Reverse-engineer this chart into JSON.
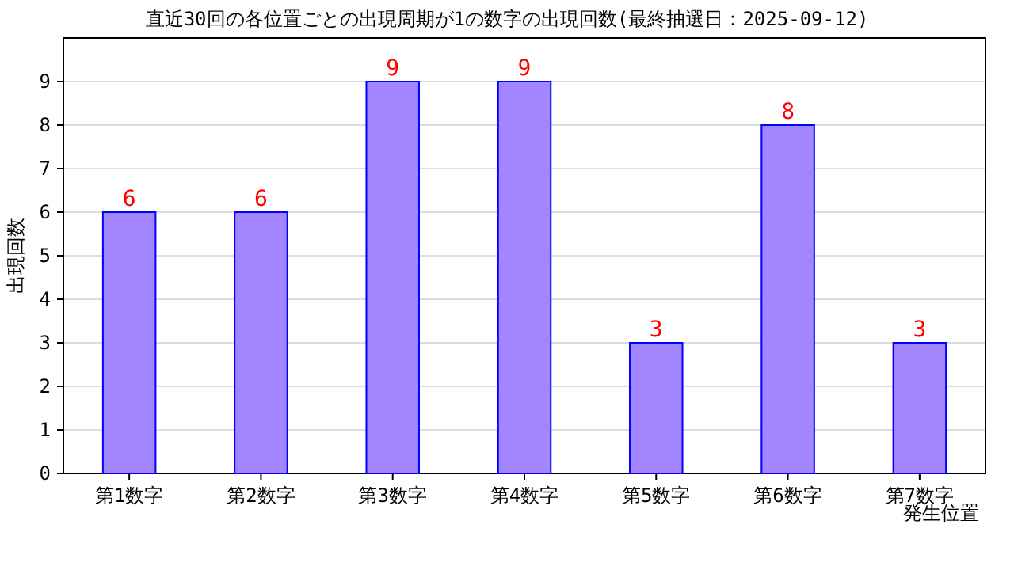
{
  "chart_data": {
    "type": "bar",
    "title": "直近30回の各位置ごとの出現周期が1の数字の出現回数(最終抽選日：2025-09-12)",
    "xlabel": "発生位置",
    "ylabel": "出現回数",
    "categories": [
      "第1数字",
      "第2数字",
      "第3数字",
      "第4数字",
      "第5数字",
      "第6数字",
      "第7数字"
    ],
    "values": [
      6,
      6,
      9,
      9,
      3,
      8,
      3
    ],
    "color": "#a385ff",
    "data_labels": true,
    "ylim": [
      0,
      10
    ],
    "yticks": [
      0,
      1,
      2,
      3,
      4,
      5,
      6,
      7,
      8,
      9
    ],
    "grid": "y"
  }
}
